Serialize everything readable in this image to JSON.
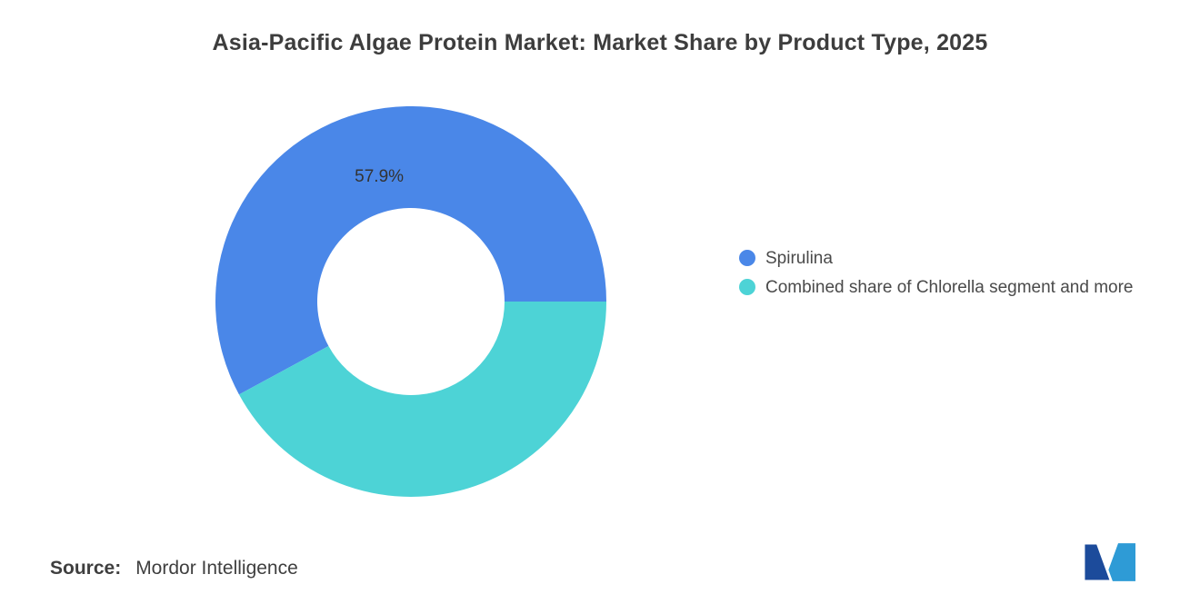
{
  "chart_data": {
    "type": "pie",
    "donut": true,
    "title": "Asia-Pacific Algae Protein Market: Market Share by Product Type, 2025",
    "series": [
      {
        "name": "Spirulina",
        "value": 57.9,
        "label": "57.9%",
        "color": "#4a87e8"
      },
      {
        "name": "Combined share of Chlorella segment and more",
        "value": 42.1,
        "label": "",
        "color": "#4dd3d6"
      }
    ],
    "inner_radius_ratio": 0.48,
    "start_angle_deg": -208.44,
    "legend_position": "right",
    "label_color": "#333333"
  },
  "footer": {
    "source_label": "Source:",
    "source_value": "Mordor Intelligence"
  },
  "logo": {
    "dark_color": "#1c4b9b",
    "light_color": "#2e9bd6"
  }
}
